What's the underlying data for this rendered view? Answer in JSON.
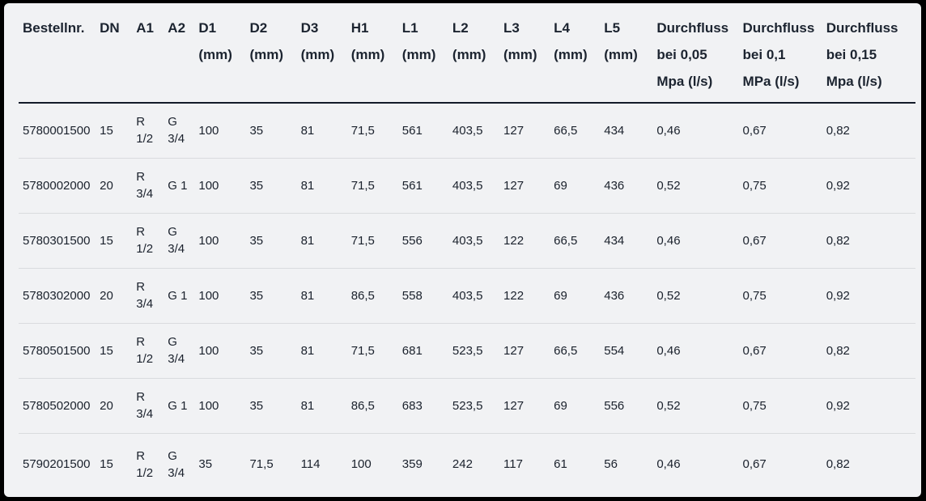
{
  "chart_data": {
    "type": "table",
    "columns": [
      {
        "id": "bestellnr",
        "lines": [
          "Bestellnr."
        ]
      },
      {
        "id": "dn",
        "lines": [
          "DN"
        ]
      },
      {
        "id": "a1",
        "lines": [
          "A1"
        ]
      },
      {
        "id": "a2",
        "lines": [
          "A2"
        ]
      },
      {
        "id": "d1",
        "lines": [
          "D1",
          "(mm)"
        ]
      },
      {
        "id": "d2",
        "lines": [
          "D2",
          "(mm)"
        ]
      },
      {
        "id": "d3",
        "lines": [
          "D3",
          "(mm)"
        ]
      },
      {
        "id": "h1",
        "lines": [
          "H1",
          "(mm)"
        ]
      },
      {
        "id": "l1",
        "lines": [
          "L1",
          "(mm)"
        ]
      },
      {
        "id": "l2",
        "lines": [
          "L2",
          "(mm)"
        ]
      },
      {
        "id": "l3",
        "lines": [
          "L3",
          "(mm)"
        ]
      },
      {
        "id": "l4",
        "lines": [
          "L4",
          "(mm)"
        ]
      },
      {
        "id": "l5",
        "lines": [
          "L5",
          "(mm)"
        ]
      },
      {
        "id": "durchfluss-005",
        "lines": [
          "Durchfluss",
          "bei 0,05",
          "Mpa (l/s)"
        ]
      },
      {
        "id": "durchfluss-01",
        "lines": [
          "Durchfluss",
          "bei 0,1",
          "MPa (l/s)"
        ]
      },
      {
        "id": "durchfluss-015",
        "lines": [
          "Durchfluss",
          "bei 0,15",
          "Mpa (l/s)"
        ]
      }
    ],
    "rows": [
      [
        "5780001500",
        "15",
        "R 1/2",
        "G 3/4",
        "100",
        "35",
        "81",
        "71,5",
        "561",
        "403,5",
        "127",
        "66,5",
        "434",
        "0,46",
        "0,67",
        "0,82"
      ],
      [
        "5780002000",
        "20",
        "R 3/4",
        "G 1",
        "100",
        "35",
        "81",
        "71,5",
        "561",
        "403,5",
        "127",
        "69",
        "436",
        "0,52",
        "0,75",
        "0,92"
      ],
      [
        "5780301500",
        "15",
        "R 1/2",
        "G 3/4",
        "100",
        "35",
        "81",
        "71,5",
        "556",
        "403,5",
        "122",
        "66,5",
        "434",
        "0,46",
        "0,67",
        "0,82"
      ],
      [
        "5780302000",
        "20",
        "R 3/4",
        "G 1",
        "100",
        "35",
        "81",
        "86,5",
        "558",
        "403,5",
        "122",
        "69",
        "436",
        "0,52",
        "0,75",
        "0,92"
      ],
      [
        "5780501500",
        "15",
        "R 1/2",
        "G 3/4",
        "100",
        "35",
        "81",
        "71,5",
        "681",
        "523,5",
        "127",
        "66,5",
        "554",
        "0,46",
        "0,67",
        "0,82"
      ],
      [
        "5780502000",
        "20",
        "R 3/4",
        "G 1",
        "100",
        "35",
        "81",
        "86,5",
        "683",
        "523,5",
        "127",
        "69",
        "556",
        "0,52",
        "0,75",
        "0,92"
      ],
      [
        "5790201500",
        "15",
        "R 1/2",
        "G 3/4",
        "35",
        "71,5",
        "114",
        "100",
        "359",
        "242",
        "117",
        "61",
        "56",
        "0,46",
        "0,67",
        "0,82"
      ]
    ]
  },
  "colors": {
    "frame": "#000000",
    "panel_background": "#f1f2f4",
    "text": "#1c2430",
    "header_rule": "#131b29",
    "row_divider": "#d9dbde"
  }
}
